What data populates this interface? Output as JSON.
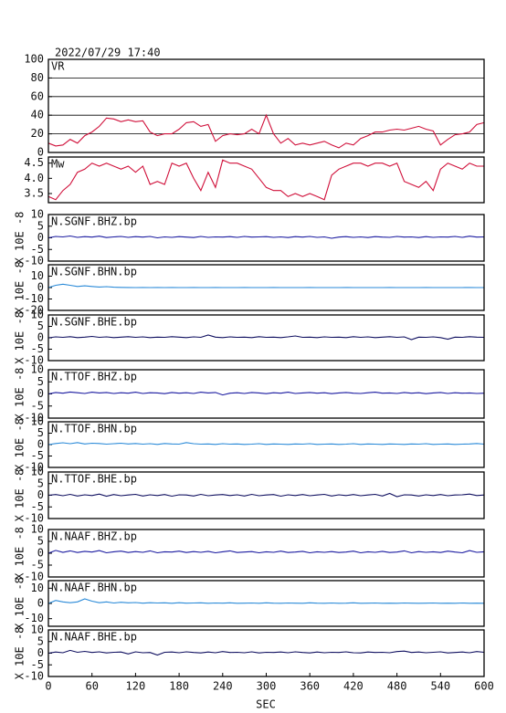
{
  "chart_data": {
    "type": "multi-panel-line",
    "title": "2022/07/29  17:40",
    "x_label": "SEC",
    "xlim": [
      0,
      600
    ],
    "xticks": [
      0,
      60,
      120,
      180,
      240,
      300,
      360,
      420,
      480,
      540,
      600
    ],
    "x": [
      0,
      10,
      20,
      30,
      40,
      50,
      60,
      70,
      80,
      90,
      100,
      110,
      120,
      130,
      140,
      150,
      160,
      170,
      180,
      190,
      200,
      210,
      220,
      230,
      240,
      250,
      260,
      270,
      280,
      290,
      300,
      310,
      320,
      330,
      340,
      350,
      360,
      370,
      380,
      390,
      400,
      410,
      420,
      430,
      440,
      450,
      460,
      470,
      480,
      490,
      500,
      510,
      520,
      530,
      540,
      550,
      560,
      570,
      580,
      590,
      600
    ],
    "panels": [
      {
        "label": "VR",
        "color": "#d0103a",
        "ylim": [
          0,
          100
        ],
        "yticks": [
          0,
          20,
          40,
          60,
          80,
          100
        ],
        "grid": true,
        "values": [
          10,
          7,
          8,
          14,
          10,
          18,
          22,
          28,
          37,
          36,
          33,
          35,
          33,
          34,
          22,
          18,
          20,
          20,
          25,
          32,
          33,
          28,
          30,
          12,
          18,
          20,
          19,
          20,
          25,
          20,
          40,
          20,
          10,
          15,
          8,
          10,
          8,
          10,
          12,
          8,
          5,
          10,
          8,
          15,
          18,
          22,
          22,
          24,
          25,
          24,
          26,
          28,
          25,
          23,
          8,
          14,
          19,
          20,
          22,
          30,
          32
        ]
      },
      {
        "label": "Mw",
        "color": "#d0103a",
        "ylim": [
          3.2,
          4.7
        ],
        "yticks": [
          3.5,
          {
            "value": 4,
            "label": "4.0"
          },
          4.5
        ],
        "grid": false,
        "values": [
          3.4,
          3.3,
          3.6,
          3.8,
          4.2,
          4.3,
          4.5,
          4.4,
          4.5,
          4.4,
          4.3,
          4.4,
          4.2,
          4.4,
          3.8,
          3.9,
          3.8,
          4.5,
          4.4,
          4.5,
          4.0,
          3.6,
          4.2,
          3.7,
          4.6,
          4.5,
          4.5,
          4.4,
          4.3,
          4.0,
          3.7,
          3.6,
          3.6,
          3.4,
          3.5,
          3.4,
          3.5,
          3.4,
          3.3,
          4.1,
          4.3,
          4.4,
          4.5,
          4.5,
          4.4,
          4.5,
          4.5,
          4.4,
          4.5,
          3.9,
          3.8,
          3.7,
          3.9,
          3.6,
          4.3,
          4.5,
          4.4,
          4.3,
          4.5,
          4.4,
          4.4
        ]
      },
      {
        "label": "N.SGNF.BHZ.bp",
        "y_label": "X 10E -8",
        "color": "#1a1aa0",
        "ylim": [
          -10,
          10
        ],
        "yticks": [
          -10,
          -5,
          0,
          5,
          10
        ],
        "grid": false,
        "values": [
          0,
          0.6,
          0.4,
          0.8,
          0.2,
          0.5,
          0.3,
          0.7,
          0.1,
          0.4,
          0.6,
          0.2,
          0.5,
          0.3,
          0.6,
          0,
          0.4,
          0.2,
          0.5,
          0.3,
          0.1,
          0.6,
          0.2,
          0.4,
          0.3,
          0.5,
          0.2,
          0.6,
          0.3,
          0.4,
          0.5,
          0.2,
          0.4,
          0.1,
          0.5,
          0.3,
          0.6,
          0.2,
          0.4,
          -0.2,
          0.3,
          0.5,
          0.2,
          0.4,
          0.1,
          0.5,
          0.3,
          0.2,
          0.6,
          0.3,
          0.4,
          0.1,
          0.5,
          0.2,
          0.4,
          0.3,
          0.6,
          0.2,
          0.7,
          0.3,
          0.4
        ]
      },
      {
        "label": "N.SGNF.BHN.bp",
        "y_label": "X 10E -8",
        "color": "#2a8ad8",
        "ylim": [
          -20,
          20
        ],
        "yticks": [
          -20,
          -10,
          0,
          10
        ],
        "grid": false,
        "values": [
          0,
          2,
          3,
          2,
          1,
          1.5,
          1,
          0.5,
          0.8,
          0.3,
          0.2,
          0.1,
          0,
          0.1,
          0,
          0.1,
          0,
          0.1,
          0,
          0,
          0.1,
          0,
          0,
          0.1,
          0,
          0,
          0,
          0.1,
          0,
          0,
          0,
          0.1,
          0,
          0,
          0,
          0,
          0.1,
          0,
          0,
          0,
          0,
          0.1,
          0,
          0,
          0,
          0,
          0,
          0.1,
          0,
          0,
          0,
          0,
          0.1,
          0,
          0,
          0,
          0,
          0,
          0.1,
          0,
          0
        ]
      },
      {
        "label": "N.SGNF.BHE.bp",
        "y_label": "X 10E -8",
        "color": "#101060",
        "ylim": [
          -10,
          10
        ],
        "yticks": [
          -10,
          -5,
          0,
          5,
          10
        ],
        "grid": false,
        "values": [
          0,
          0.4,
          0.2,
          0.5,
          0.1,
          0.3,
          0.6,
          0.2,
          0.4,
          0.1,
          0.3,
          0.5,
          0.2,
          0.4,
          0.1,
          0.3,
          0.2,
          0.5,
          0.3,
          0.1,
          0.4,
          0.2,
          1.2,
          0.3,
          0.1,
          0.4,
          0.2,
          0.3,
          0.1,
          0.5,
          0.2,
          0.3,
          0.1,
          0.4,
          0.8,
          0.2,
          0.3,
          0.1,
          0.4,
          0.2,
          0.3,
          0.1,
          0.5,
          0.2,
          0.4,
          0.1,
          0.3,
          0.5,
          0.2,
          0.4,
          -0.8,
          0.3,
          0.2,
          0.4,
          0.1,
          -0.6,
          0.3,
          0.2,
          0.5,
          0.3,
          0.2
        ]
      },
      {
        "label": "N.TTOF.BHZ.bp",
        "y_label": "X 10E -8",
        "color": "#1a1aa0",
        "ylim": [
          -10,
          10
        ],
        "yticks": [
          -10,
          -5,
          0,
          5,
          10
        ],
        "grid": false,
        "values": [
          0,
          0.6,
          0.3,
          0.8,
          0.5,
          0.2,
          0.7,
          0.4,
          0.6,
          0.2,
          0.5,
          0.3,
          0.7,
          0.2,
          0.5,
          0.4,
          0.1,
          0.6,
          0.3,
          0.5,
          0.2,
          0.7,
          0.4,
          0.6,
          -0.4,
          0.3,
          0.5,
          0.2,
          0.6,
          0.4,
          0.1,
          0.5,
          0.3,
          0.7,
          0.2,
          0.4,
          0.6,
          0.3,
          0.5,
          0.1,
          0.4,
          0.6,
          0.3,
          0.2,
          0.5,
          0.7,
          0.3,
          0.4,
          0.2,
          0.6,
          0.3,
          0.5,
          0.1,
          0.4,
          0.6,
          0.2,
          0.5,
          0.3,
          0.4,
          0.2,
          0.3
        ]
      },
      {
        "label": "N.TTOF.BHN.bp",
        "y_label": "X 10E -8",
        "color": "#2a8ad8",
        "ylim": [
          -10,
          10
        ],
        "yticks": [
          -10,
          -5,
          0,
          5,
          10
        ],
        "grid": false,
        "values": [
          0,
          0.5,
          0.8,
          0.4,
          0.9,
          0.3,
          0.6,
          0.5,
          0.2,
          0.4,
          0.6,
          0.3,
          0.5,
          0.2,
          0.4,
          0.1,
          0.5,
          0.3,
          0.2,
          0.9,
          0.4,
          0.2,
          0.3,
          0.1,
          0.4,
          0.2,
          0.3,
          0.1,
          0.2,
          0.4,
          0.1,
          0.3,
          0.2,
          0.1,
          0.3,
          0.2,
          0.4,
          0.1,
          0.2,
          0.3,
          0.1,
          0.2,
          0.4,
          0.1,
          0.3,
          0.2,
          0.1,
          0.3,
          0.2,
          0.1,
          0.3,
          0.2,
          0.4,
          0.1,
          0.2,
          0.3,
          0.1,
          0.2,
          0.3,
          0.5,
          0.2
        ]
      },
      {
        "label": "N.TTOF.BHE.bp",
        "y_label": "X 10E -8",
        "color": "#101060",
        "ylim": [
          -10,
          10
        ],
        "yticks": [
          -10,
          -5,
          0,
          5,
          10
        ],
        "grid": false,
        "values": [
          0,
          0.3,
          -0.2,
          0.4,
          -0.3,
          0.2,
          -0.1,
          0.5,
          -0.4,
          0.3,
          -0.2,
          0.1,
          0.4,
          -0.3,
          0.2,
          -0.1,
          0.3,
          -0.4,
          0.2,
          0.1,
          -0.3,
          0.4,
          -0.2,
          0.1,
          0.3,
          -0.1,
          0.2,
          -0.3,
          0.4,
          -0.2,
          0.1,
          0.3,
          -0.4,
          0.2,
          -0.1,
          0.3,
          -0.2,
          0.1,
          0.4,
          -0.3,
          0.2,
          -0.1,
          0.3,
          -0.2,
          0.1,
          0.4,
          -0.3,
          0.8,
          -0.6,
          0.2,
          0.1,
          -0.3,
          0.2,
          -0.1,
          0.3,
          -0.2,
          0.1,
          0.2,
          0.5,
          -0.1,
          0.1
        ]
      },
      {
        "label": "N.NAAF.BHZ.bp",
        "y_label": "X 10E -8",
        "color": "#1a1aa0",
        "ylim": [
          -10,
          10
        ],
        "yticks": [
          -10,
          -5,
          0,
          5,
          10
        ],
        "grid": false,
        "values": [
          0,
          1.2,
          0.4,
          1.0,
          0.3,
          0.8,
          0.5,
          1.1,
          0.2,
          0.6,
          0.9,
          0.3,
          0.7,
          0.4,
          1.0,
          0.2,
          0.6,
          0.5,
          0.9,
          0.3,
          0.7,
          0.4,
          0.8,
          0.2,
          0.6,
          1.0,
          0.3,
          0.5,
          0.7,
          0.2,
          0.6,
          0.4,
          0.9,
          0.3,
          0.5,
          0.8,
          0.2,
          0.6,
          0.4,
          0.7,
          0.3,
          0.5,
          0.9,
          0.2,
          0.6,
          0.4,
          0.8,
          0.3,
          0.5,
          1.0,
          0.2,
          0.7,
          0.4,
          0.6,
          0.3,
          0.9,
          0.5,
          0.2,
          1.1,
          0.4,
          0.6
        ]
      },
      {
        "label": "N.NAAF.BHN.bp",
        "y_label": "X 10E -8",
        "color": "#2a8ad8",
        "ylim": [
          -15,
          15
        ],
        "yticks": [
          -10,
          0,
          10
        ],
        "grid": false,
        "values": [
          0,
          2,
          1,
          0.5,
          1,
          3,
          1.5,
          0.5,
          1,
          0.3,
          0.8,
          0.4,
          0.6,
          0.2,
          0.5,
          0.3,
          0.4,
          0.1,
          0.5,
          0.2,
          0.3,
          0.4,
          0.1,
          0.3,
          0.2,
          0.4,
          0.1,
          0.2,
          0.3,
          0.1,
          0.4,
          0.2,
          0.1,
          0.3,
          0.2,
          0.1,
          0.4,
          0.2,
          0.1,
          0.3,
          0.1,
          0.2,
          0.4,
          0.1,
          0.2,
          0.3,
          0.1,
          0.2,
          0.1,
          0.3,
          0.2,
          0.1,
          0.2,
          0.3,
          0.1,
          0.2,
          0.1,
          0.3,
          0.1,
          0.2,
          0.1
        ]
      },
      {
        "label": "N.NAAF.BHE.bp",
        "y_label": "X 10E -8",
        "color": "#101060",
        "ylim": [
          -10,
          10
        ],
        "yticks": [
          -10,
          -5,
          0,
          5,
          10
        ],
        "grid": false,
        "values": [
          0,
          0.5,
          0.2,
          1.2,
          0.4,
          0.8,
          0.3,
          0.6,
          0.1,
          0.4,
          0.5,
          -0.3,
          0.6,
          0.2,
          0.3,
          -0.8,
          0.4,
          0.5,
          0.2,
          0.6,
          0.3,
          0.1,
          0.5,
          0.2,
          0.7,
          0.3,
          0.4,
          0.2,
          0.6,
          0.1,
          0.4,
          0.3,
          0.5,
          0.2,
          0.6,
          0.3,
          0.1,
          0.5,
          0.2,
          0.4,
          0.3,
          0.6,
          0.2,
          0.1,
          0.5,
          0.3,
          0.4,
          0.2,
          0.7,
          0.9,
          0.3,
          0.5,
          0.2,
          0.4,
          0.6,
          0.1,
          0.3,
          0.5,
          0.2,
          0.7,
          0.4
        ]
      }
    ]
  }
}
